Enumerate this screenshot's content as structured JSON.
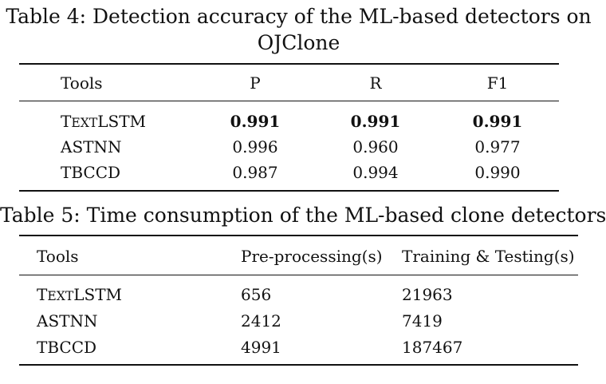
{
  "table4": {
    "caption": "Table 4: Detection accuracy of the ML-based detectors on OJClone",
    "caption_line1": "Table 4: Detection accuracy of the ML-based detectors on",
    "caption_line2": "OJClone",
    "headers": [
      "Tools",
      "P",
      "R",
      "F1"
    ],
    "rows": [
      {
        "tool_first": "T",
        "tool_caps": "EXT",
        "tool_rest": "LSTM",
        "p": "0.991",
        "r": "0.991",
        "f1": "0.991",
        "bold": true
      },
      {
        "tool": "ASTNN",
        "p": "0.996",
        "r": "0.960",
        "f1": "0.977"
      },
      {
        "tool": "TBCCD",
        "p": "0.987",
        "r": "0.994",
        "f1": "0.990"
      }
    ]
  },
  "table5": {
    "caption": "Table 5: Time consumption of the ML-based clone detectors",
    "headers": [
      "Tools",
      "Pre-processing(s)",
      "Training & Testing(s)"
    ],
    "rows": [
      {
        "tool_first": "T",
        "tool_caps": "EXT",
        "tool_rest": "LSTM",
        "pre": "656",
        "train": "21963"
      },
      {
        "tool": "ASTNN",
        "pre": "2412",
        "train": "7419"
      },
      {
        "tool": "TBCCD",
        "pre": "4991",
        "train": "187467"
      }
    ]
  }
}
